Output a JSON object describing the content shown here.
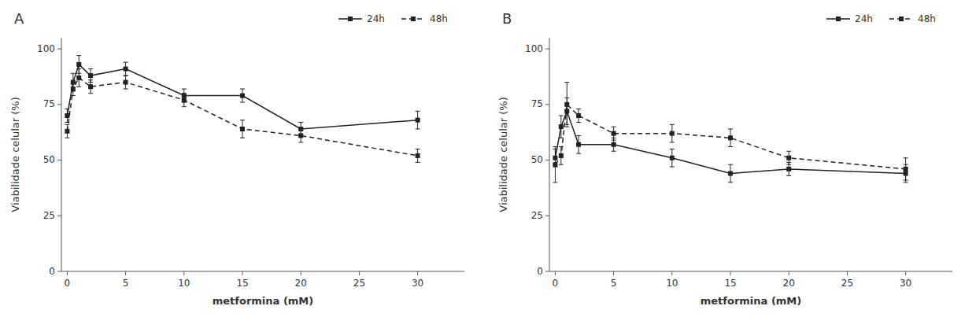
{
  "chart_data": [
    {
      "type": "line",
      "title": "A",
      "x": [
        0,
        0.5,
        1,
        2,
        5,
        10,
        15,
        20,
        30
      ],
      "series": [
        {
          "name": "24h",
          "color": "#222222",
          "marker": "square",
          "line_style": "solid",
          "values": [
            70,
            85,
            93,
            88,
            91,
            79,
            79,
            64,
            68
          ],
          "errors": [
            3,
            4,
            4,
            3,
            3,
            3,
            3,
            3,
            4
          ]
        },
        {
          "name": "48h",
          "color": "#222222",
          "marker": "square",
          "line_style": "dashed",
          "values": [
            63,
            82,
            87,
            83,
            85,
            77,
            64,
            61,
            52
          ],
          "errors": [
            3,
            3,
            4,
            3,
            3,
            3,
            4,
            3,
            3
          ]
        }
      ],
      "xlabel": "metformina (mM)",
      "ylabel": "Viabilidade celular (%)",
      "xlim": [
        -0.5,
        34
      ],
      "ylim": [
        0,
        105
      ],
      "xticks": [
        0,
        5,
        10,
        15,
        20,
        25,
        30
      ],
      "yticks": [
        0,
        25,
        50,
        75,
        100
      ],
      "grid": false,
      "legend": "upper right"
    },
    {
      "type": "line",
      "title": "B",
      "x": [
        0,
        0.5,
        1,
        2,
        5,
        10,
        15,
        20,
        30
      ],
      "series": [
        {
          "name": "24h",
          "color": "#222222",
          "marker": "square",
          "line_style": "solid",
          "values": [
            51,
            65,
            72,
            57,
            57,
            51,
            44,
            46,
            44
          ],
          "errors": [
            4,
            5,
            6,
            4,
            3,
            4,
            4,
            3,
            4
          ]
        },
        {
          "name": "48h",
          "color": "#222222",
          "marker": "square",
          "line_style": "dashed",
          "values": [
            48,
            52,
            75,
            70,
            62,
            62,
            60,
            51,
            46
          ],
          "errors": [
            8,
            4,
            10,
            3,
            3,
            4,
            4,
            3,
            5
          ]
        }
      ],
      "xlabel": "metformina (mM)",
      "ylabel": "Viabilidade celular (%)",
      "xlim": [
        -0.5,
        34
      ],
      "ylim": [
        0,
        105
      ],
      "xticks": [
        0,
        5,
        10,
        15,
        20,
        25,
        30
      ],
      "yticks": [
        0,
        25,
        50,
        75,
        100
      ],
      "grid": false,
      "legend": "upper right"
    }
  ]
}
